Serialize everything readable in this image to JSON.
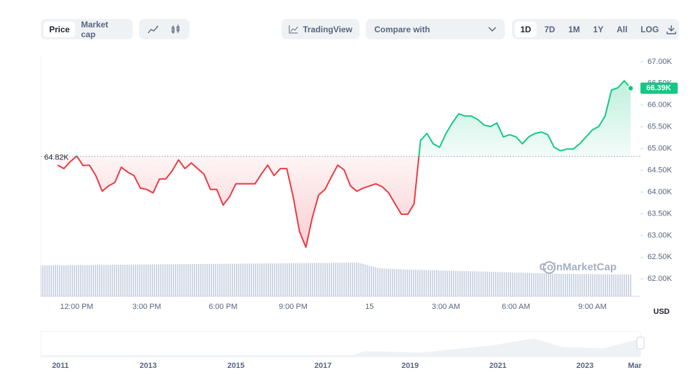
{
  "toolbar": {
    "tabs": [
      "Price",
      "Market cap"
    ],
    "tradingview": "TradingView",
    "compare": "Compare with",
    "ranges": [
      "1D",
      "7D",
      "1M",
      "1Y",
      "All",
      "LOG"
    ]
  },
  "chart_data": {
    "type": "line",
    "categories": [
      null,
      null,
      null,
      "12:00 PM",
      null,
      null,
      null,
      null,
      null,
      null,
      null,
      null,
      null,
      null,
      "3:00 PM",
      null,
      null,
      null,
      null,
      null,
      null,
      null,
      null,
      null,
      null,
      null,
      "6:00 PM",
      null,
      null,
      null,
      null,
      null,
      null,
      null,
      null,
      null,
      null,
      "9:00 PM",
      null,
      null,
      null,
      null,
      null,
      null,
      null,
      null,
      null,
      null,
      null,
      "15",
      null,
      null,
      null,
      null,
      null,
      null,
      null,
      null,
      null,
      null,
      null,
      "3:00 AM",
      null,
      null,
      null,
      null,
      null,
      null,
      null,
      null,
      null,
      null,
      "6:00 AM",
      null,
      null,
      null,
      null,
      null,
      null,
      null,
      null,
      null,
      null,
      null,
      "9:00 AM",
      null,
      null,
      null,
      null,
      null,
      null
    ],
    "series": [
      {
        "name": "Price",
        "values": [
          64620,
          64540,
          64700,
          64830,
          64610,
          64620,
          64380,
          64020,
          64140,
          64220,
          64570,
          64460,
          64380,
          64090,
          64060,
          63980,
          64300,
          64300,
          64490,
          64740,
          64540,
          64670,
          64540,
          64410,
          64060,
          64060,
          63700,
          63890,
          64190,
          64190,
          64190,
          64190,
          64410,
          64620,
          64380,
          64540,
          64540,
          63890,
          63090,
          62730,
          63410,
          63930,
          64060,
          64350,
          64620,
          64510,
          64140,
          64020,
          64090,
          64140,
          64190,
          64120,
          63980,
          63730,
          63490,
          63490,
          63730,
          65190,
          65350,
          65110,
          65030,
          65350,
          65590,
          65800,
          65750,
          65750,
          65670,
          65540,
          65510,
          65590,
          65270,
          65320,
          65270,
          65110,
          65270,
          65350,
          65380,
          65320,
          65030,
          64950,
          64990,
          64990,
          65110,
          65270,
          65430,
          65510,
          65750,
          66350,
          66400,
          66560,
          66400
        ]
      }
    ],
    "up_color": "#16c784",
    "down_color": "#ea3943",
    "baseline": 64820,
    "baseline_label": "64.82K",
    "last_value": 66390,
    "last_label": "66.39K",
    "ylim": [
      61600,
      67160
    ],
    "yticks": [
      {
        "value": 62000,
        "label": "62.00K"
      },
      {
        "value": 62500,
        "label": "62.50K"
      },
      {
        "value": 63000,
        "label": "63.00K"
      },
      {
        "value": 63500,
        "label": "63.50K"
      },
      {
        "value": 64000,
        "label": "64.00K"
      },
      {
        "value": 64500,
        "label": "64.50K"
      },
      {
        "value": 65000,
        "label": "65.00K"
      },
      {
        "value": 65500,
        "label": "65.50K"
      },
      {
        "value": 66000,
        "label": "66.00K"
      },
      {
        "value": 66500,
        "label": "66.50K"
      },
      {
        "value": 67000,
        "label": "67.00K"
      }
    ],
    "y_label": "USD",
    "watermark": "CoinMarketCap"
  },
  "navigator": {
    "labels": [
      "2011",
      "2013",
      "2015",
      "2017",
      "2019",
      "2021",
      "2023",
      "Mar"
    ]
  }
}
